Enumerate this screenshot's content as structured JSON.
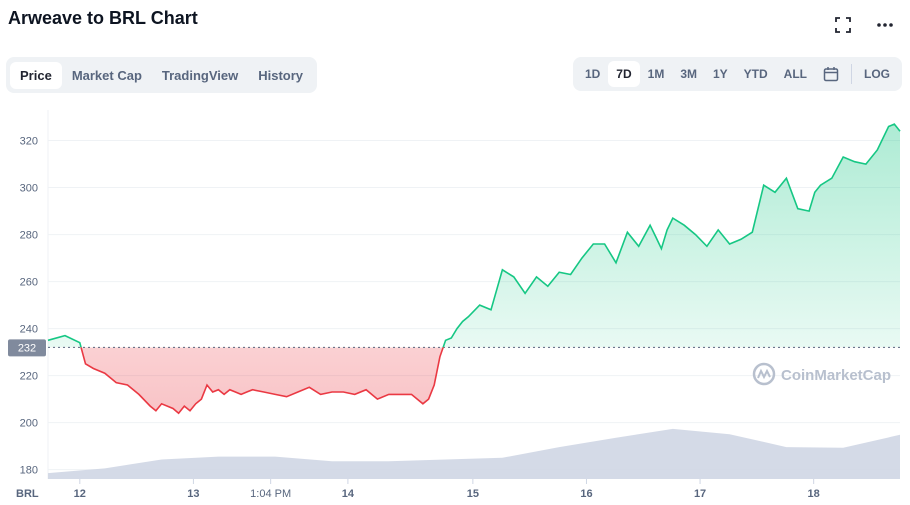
{
  "header": {
    "title": "Arweave to BRL Chart",
    "fullscreen_icon": "expand-icon",
    "more_icon": "more-horizontal-icon"
  },
  "tabs": [
    {
      "label": "Price",
      "active": true
    },
    {
      "label": "Market Cap",
      "active": false
    },
    {
      "label": "TradingView",
      "active": false
    },
    {
      "label": "History",
      "active": false
    }
  ],
  "ranges": [
    {
      "label": "1D",
      "active": false
    },
    {
      "label": "7D",
      "active": true
    },
    {
      "label": "1M",
      "active": false
    },
    {
      "label": "3M",
      "active": false
    },
    {
      "label": "1Y",
      "active": false
    },
    {
      "label": "YTD",
      "active": false
    },
    {
      "label": "ALL",
      "active": false
    }
  ],
  "calendar_icon": "calendar-icon",
  "log_label": "LOG",
  "watermark": "CoinMarketCap",
  "colors": {
    "up": "#16c784",
    "down": "#ea3943",
    "volume": "#cfd6e4",
    "ref_label_bg": "#808a9d"
  },
  "chart_data": {
    "type": "line",
    "title": "Arweave to BRL Chart",
    "currency_label": "BRL",
    "reference_price": 232,
    "reference_label": "232",
    "y_ticks": [
      180,
      200,
      220,
      240,
      260,
      280,
      300,
      320
    ],
    "ylim": [
      176,
      333
    ],
    "x_ticks": [
      "12",
      "13",
      "1:04 PM",
      "14",
      "15",
      "16",
      "17",
      "18"
    ],
    "x_tick_positions": [
      0.28,
      1.28,
      1.96,
      2.64,
      3.74,
      4.74,
      5.74,
      6.74
    ],
    "xlim": [
      0,
      7.5
    ],
    "grid": true,
    "series": [
      {
        "name": "Price",
        "x": [
          0.0,
          0.15,
          0.28,
          0.33,
          0.4,
          0.5,
          0.6,
          0.7,
          0.8,
          0.9,
          0.95,
          1.0,
          1.1,
          1.15,
          1.2,
          1.25,
          1.3,
          1.35,
          1.4,
          1.45,
          1.5,
          1.55,
          1.6,
          1.65,
          1.7,
          1.75,
          1.8,
          1.9,
          2.0,
          2.1,
          2.2,
          2.3,
          2.4,
          2.5,
          2.6,
          2.7,
          2.8,
          2.9,
          3.0,
          3.1,
          3.2,
          3.3,
          3.35,
          3.4,
          3.45,
          3.5,
          3.55,
          3.6,
          3.65,
          3.7,
          3.8,
          3.9,
          4.0,
          4.1,
          4.2,
          4.3,
          4.4,
          4.5,
          4.6,
          4.7,
          4.8,
          4.9,
          5.0,
          5.1,
          5.2,
          5.3,
          5.35,
          5.4,
          5.45,
          5.5,
          5.6,
          5.7,
          5.8,
          5.9,
          6.0,
          6.1,
          6.2,
          6.3,
          6.4,
          6.5,
          6.6,
          6.7,
          6.75,
          6.8,
          6.9,
          7.0,
          7.1,
          7.2,
          7.3,
          7.4,
          7.45,
          7.5
        ],
        "values": [
          235,
          237,
          234,
          225,
          223,
          221,
          217,
          216,
          212,
          207,
          205,
          208,
          206,
          204,
          207,
          205,
          208,
          210,
          216,
          213,
          214,
          212,
          214,
          213,
          212,
          213,
          214,
          213,
          212,
          211,
          213,
          215,
          212,
          213,
          213,
          212,
          214,
          210,
          212,
          212,
          212,
          208,
          210,
          216,
          228,
          235,
          236,
          240,
          243,
          245,
          250,
          248,
          265,
          262,
          255,
          262,
          258,
          264,
          263,
          270,
          276,
          276,
          268,
          281,
          275,
          284,
          279,
          274,
          282,
          287,
          284,
          280,
          275,
          282,
          276,
          278,
          281,
          301,
          298,
          304,
          291,
          290,
          298,
          301,
          304,
          313,
          311,
          310,
          316,
          326,
          327,
          324
        ]
      },
      {
        "name": "Volume",
        "x": [
          0.0,
          0.5,
          1.0,
          1.5,
          2.0,
          2.5,
          3.0,
          3.5,
          4.0,
          4.5,
          5.0,
          5.5,
          6.0,
          6.5,
          7.0,
          7.5
        ],
        "values": [
          0.1,
          0.18,
          0.33,
          0.38,
          0.38,
          0.3,
          0.3,
          0.33,
          0.36,
          0.54,
          0.7,
          0.85,
          0.76,
          0.54,
          0.53,
          0.75
        ]
      }
    ]
  }
}
